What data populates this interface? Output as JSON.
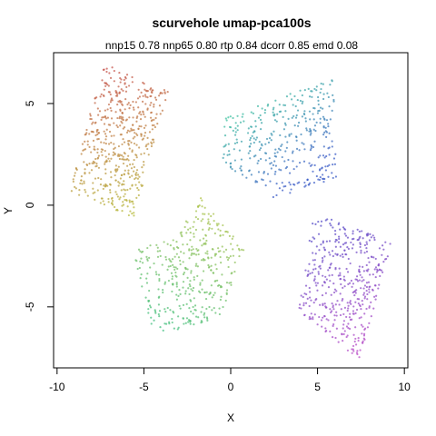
{
  "chart_data": {
    "type": "scatter",
    "title": "scurvehole umap-pca100s",
    "subtitle": "nnp15 0.78 nnp65 0.80 rtp 0.84 dcorr 0.85 emd 0.08",
    "xlabel": "X",
    "ylabel": "Y",
    "xlim": [
      -10.2,
      10.2
    ],
    "ylim": [
      -8.0,
      7.5
    ],
    "x_ticks": [
      -10,
      -5,
      0,
      5,
      10
    ],
    "y_ticks": [
      -5,
      0,
      5
    ],
    "x_tick_labels": [
      "-10",
      "-5",
      "0",
      "5",
      "10"
    ],
    "y_tick_labels": [
      "-5",
      "0",
      "5"
    ],
    "grid": false,
    "legend": "none",
    "color_scale": "rainbow hue along manifold position",
    "clusters": [
      {
        "region": "top-left block",
        "color_range": [
          "#c85050",
          "#b8c040"
        ],
        "vertices": [
          [
            -7.3,
            7.0
          ],
          [
            -3.6,
            5.6
          ],
          [
            -5.6,
            -0.7
          ],
          [
            -9.3,
            0.7
          ]
        ],
        "n_points": 520
      },
      {
        "region": "lower-middle band",
        "color_range": [
          "#b4c44c",
          "#3cc088"
        ],
        "vertices": [
          [
            -1.7,
            0.4
          ],
          [
            0.8,
            -2.1
          ],
          [
            -0.6,
            -5.5
          ],
          [
            -4.5,
            -6.5
          ],
          [
            -5.6,
            -2.2
          ],
          [
            -3.2,
            -1.6
          ]
        ],
        "n_points": 380
      },
      {
        "region": "central-right arm",
        "color_range": [
          "#40c4a0",
          "#4060c8"
        ],
        "vertices": [
          [
            -0.3,
            4.3
          ],
          [
            5.9,
            6.3
          ],
          [
            6.1,
            1.2
          ],
          [
            2.1,
            0.3
          ],
          [
            1.8,
            0.8
          ],
          [
            -0.6,
            2.0
          ]
        ],
        "n_points": 360
      },
      {
        "region": "bottom-right block",
        "color_range": [
          "#5050c8",
          "#c050c8"
        ],
        "vertices": [
          [
            4.8,
            -0.3
          ],
          [
            9.3,
            -1.8
          ],
          [
            7.4,
            -7.6
          ],
          [
            3.9,
            -5.2
          ]
        ],
        "n_points": 420
      }
    ]
  }
}
